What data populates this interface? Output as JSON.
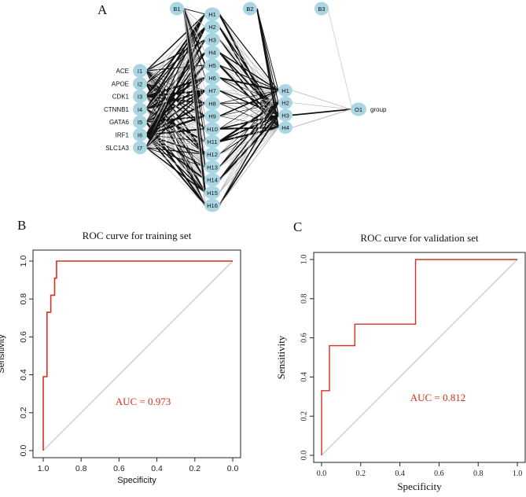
{
  "panels": {
    "a": "A",
    "b": "B",
    "c": "C"
  },
  "network": {
    "inputs": [
      {
        "id": "I1",
        "label": "ACE"
      },
      {
        "id": "I2",
        "label": "APOE"
      },
      {
        "id": "I3",
        "label": "CDK1"
      },
      {
        "id": "I4",
        "label": "CTNNB1"
      },
      {
        "id": "I5",
        "label": "GATA6"
      },
      {
        "id": "I6",
        "label": "IRF1"
      },
      {
        "id": "I7",
        "label": "SLC1A3"
      }
    ],
    "hidden1": [
      "H1",
      "H2",
      "H3",
      "H4",
      "H5",
      "H6",
      "H7",
      "H8",
      "H9",
      "H10",
      "H11",
      "H12",
      "H13",
      "H14",
      "H15",
      "H16"
    ],
    "hidden2": [
      "H1",
      "H2",
      "H3",
      "H4"
    ],
    "output": {
      "id": "O1",
      "label": "group"
    },
    "biases": [
      "B1",
      "B2",
      "B3"
    ]
  },
  "chart_data": [
    {
      "type": "line",
      "title": "ROC curve for training set",
      "xlabel": "Specificity",
      "ylabel": "Sensitivity",
      "xlim": [
        1.0,
        0.0
      ],
      "ylim": [
        0.0,
        1.0
      ],
      "xticks": [
        "1.0",
        "0.8",
        "0.6",
        "0.4",
        "0.2",
        "0.0"
      ],
      "yticks": [
        "0.0",
        "0.2",
        "0.4",
        "0.6",
        "0.8",
        "1.0"
      ],
      "series": [
        {
          "name": "ROC",
          "color": "#d62f1f",
          "x": [
            1.0,
            1.0,
            0.98,
            0.98,
            0.96,
            0.96,
            0.94,
            0.94,
            0.93,
            0.93,
            0.0
          ],
          "y": [
            0.0,
            0.39,
            0.39,
            0.73,
            0.73,
            0.82,
            0.82,
            0.91,
            0.91,
            1.0,
            1.0
          ]
        },
        {
          "name": "reference",
          "color": "#bdbdbd",
          "x": [
            1.0,
            0.0
          ],
          "y": [
            0.0,
            1.0
          ]
        }
      ],
      "annotation": "AUC = 0.973"
    },
    {
      "type": "line",
      "title": "ROC curve for validation set",
      "xlabel": "Specificity",
      "ylabel": "Sensitivity",
      "xlim": [
        0.0,
        1.0
      ],
      "ylim": [
        0.0,
        1.0
      ],
      "xticks": [
        "0.0",
        "0.2",
        "0.4",
        "0.6",
        "0.8",
        "1.0"
      ],
      "yticks": [
        "0.0",
        "0.2",
        "0.4",
        "0.6",
        "0.8",
        "1.0"
      ],
      "series": [
        {
          "name": "ROC",
          "color": "#d62f1f",
          "x": [
            0.0,
            0.0,
            0.04,
            0.04,
            0.17,
            0.17,
            0.48,
            0.48,
            1.0
          ],
          "y": [
            0.0,
            0.33,
            0.33,
            0.56,
            0.56,
            0.67,
            0.67,
            1.0,
            1.0
          ]
        },
        {
          "name": "reference",
          "color": "#bdbdbd",
          "x": [
            0.0,
            1.0
          ],
          "y": [
            0.0,
            1.0
          ]
        }
      ],
      "annotation": "AUC = 0.812"
    }
  ]
}
